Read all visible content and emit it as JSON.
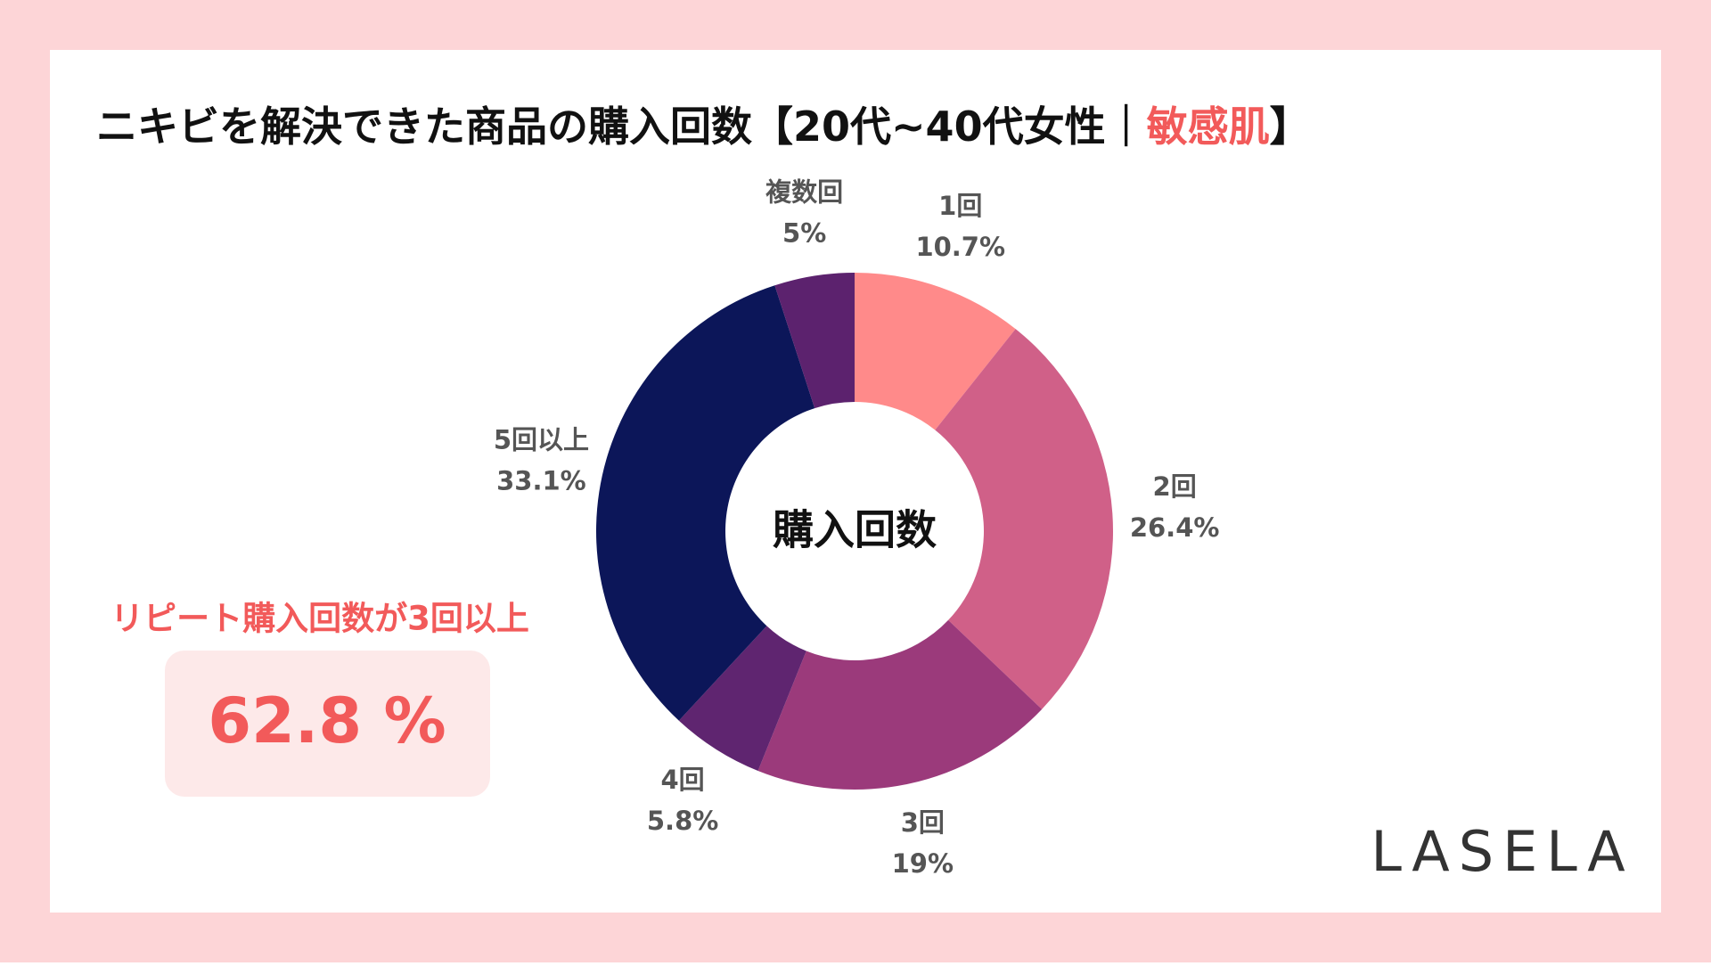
{
  "chart_data": {
    "type": "donut",
    "title_parts": [
      {
        "text": "ニキビを解決できた商品の購入回数【20代~40代女性｜",
        "color": "#111111"
      },
      {
        "text": "敏感肌",
        "color": "#f25a5a"
      },
      {
        "text": "】",
        "color": "#111111"
      }
    ],
    "center_label": "購入回数",
    "categories": [
      "1回",
      "2回",
      "3回",
      "4回",
      "5回以上",
      "複数回"
    ],
    "values": [
      10.7,
      26.4,
      19,
      5.8,
      33.1,
      5
    ],
    "value_labels": [
      "10.7%",
      "26.4%",
      "19%",
      "5.8%",
      "33.1%",
      "5%"
    ],
    "colors": [
      "#ff8a8a",
      "#d06088",
      "#9b3a7b",
      "#5f2570",
      "#0c1659",
      "#5c226e"
    ],
    "annotation": {
      "text": "リピート購入回数が3回以上",
      "value": 62.8,
      "value_label": "62.8 %"
    },
    "logo": "LASELA"
  }
}
